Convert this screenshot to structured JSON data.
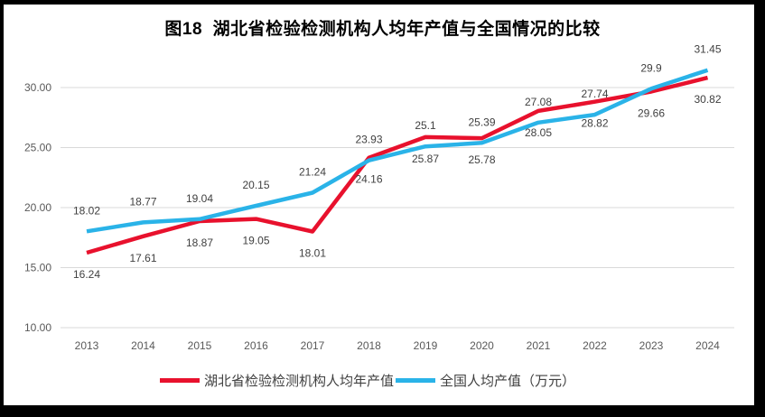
{
  "window": {
    "frame_color": "#000000",
    "background": "#ffffff"
  },
  "chart_data": {
    "type": "line",
    "title": "图18  湖北省检验检测机构人均年产值与全国情况的比较",
    "categories": [
      "2013",
      "2014",
      "2015",
      "2016",
      "2017",
      "2018",
      "2019",
      "2020",
      "2021",
      "2022",
      "2023",
      "2024"
    ],
    "series": [
      {
        "name": "湖北省检验检测机构人均年产值",
        "color": "#e8112d",
        "label_position": "below",
        "values": [
          16.24,
          17.61,
          18.87,
          19.05,
          18.01,
          24.16,
          25.87,
          25.78,
          28.05,
          28.82,
          29.66,
          30.82
        ],
        "labels": [
          "16.24",
          "17.61",
          "18.87",
          "19.05",
          "18.01",
          "24.16",
          "25.87",
          "25.78",
          "28.05",
          "28.82",
          "29.66",
          "30.82"
        ]
      },
      {
        "name": "全国人均产值（万元）",
        "color": "#2ab3e8",
        "label_position": "above",
        "values": [
          18.02,
          18.77,
          19.04,
          20.15,
          21.24,
          23.93,
          25.1,
          25.39,
          27.08,
          27.74,
          29.9,
          31.45
        ],
        "labels": [
          "18.02",
          "18.77",
          "19.04",
          "20.15",
          "21.24",
          "23.93",
          "25.1",
          "25.39",
          "27.08",
          "27.74",
          "29.9",
          "31.45"
        ]
      }
    ],
    "y_axis": {
      "tick_labels": [
        "10.00",
        "15.00",
        "20.00",
        "25.00",
        "30.00"
      ],
      "min": 10,
      "max": 30
    },
    "x_axis": {
      "tick_labels": [
        "2013",
        "2014",
        "2015",
        "2016",
        "2017",
        "2018",
        "2019",
        "2020",
        "2021",
        "2022",
        "2023",
        "2024"
      ]
    },
    "legend_position": "bottom",
    "grid": true,
    "colors": {
      "gridline": "#d9d9d9",
      "axis_text": "#595959",
      "data_label_text": "#404040",
      "legend_text": "#404040",
      "title_text": "#000000"
    }
  }
}
